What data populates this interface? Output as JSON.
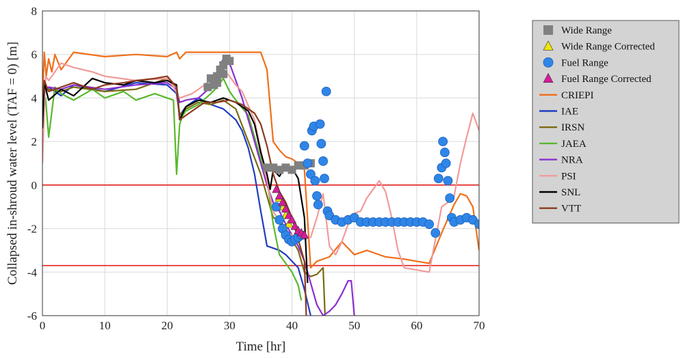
{
  "chart_data": {
    "type": "line",
    "title": "",
    "xlabel": "Time [hr]",
    "ylabel": "Collapsed in-shroud water level (TAF = 0) [m]",
    "xlim": [
      0,
      70
    ],
    "ylim": [
      -6,
      8
    ],
    "xticks": [
      "0",
      "10",
      "20",
      "30",
      "40",
      "50",
      "60",
      "70"
    ],
    "yticks": [
      "-6",
      "-4",
      "-2",
      "0",
      "2",
      "4",
      "6",
      "8"
    ],
    "grid": true,
    "legend_position": "outside-right",
    "reference_lines": [
      {
        "y": 0,
        "color": "#e0201c"
      },
      {
        "y": -3.7,
        "color": "#e0201c"
      }
    ],
    "series": [
      {
        "name": "Wide Range",
        "kind": "marker",
        "marker": "square",
        "color": "#808080",
        "x": [
          26.5,
          27,
          27.5,
          28,
          28.5,
          29,
          29.5,
          30,
          28,
          29,
          36,
          37,
          38,
          39,
          40,
          41,
          42,
          43
        ],
        "y": [
          4.5,
          4.9,
          4.6,
          5.0,
          5.3,
          5.5,
          5.8,
          5.7,
          4.7,
          5.1,
          0.8,
          0.8,
          0.7,
          0.8,
          0.7,
          0.9,
          0.9,
          1.0
        ]
      },
      {
        "name": "Wide Range Corrected",
        "kind": "marker",
        "marker": "triangle",
        "color": "#f2e600",
        "x": [
          38,
          38.5,
          39,
          39.5
        ],
        "y": [
          -0.6,
          -1.0,
          -1.4,
          -1.8
        ]
      },
      {
        "name": "Fuel Range",
        "kind": "marker",
        "marker": "circle",
        "color": "#2f86e8",
        "x": [
          37.5,
          38,
          38.5,
          39,
          39.5,
          40,
          40.5,
          41,
          41.5,
          42,
          42.5,
          43,
          43.2,
          43.5,
          43.7,
          44,
          44.2,
          44.5,
          44.7,
          45,
          45.2,
          45.5,
          45.7,
          46,
          47,
          48,
          49,
          50,
          51,
          52,
          53,
          54,
          55,
          56,
          57,
          58,
          59,
          60,
          61,
          62,
          63,
          63.5,
          64,
          64.2,
          64.5,
          64.7,
          65,
          65.3,
          65.6,
          66,
          67,
          68,
          69,
          70
        ],
        "y": [
          -1.0,
          -1.6,
          -2.0,
          -2.3,
          -2.5,
          -2.6,
          -2.5,
          -2.4,
          -2.3,
          1.8,
          1.0,
          0.5,
          2.5,
          2.7,
          0.2,
          -0.5,
          -0.9,
          2.8,
          1.9,
          1.1,
          0.3,
          4.3,
          -1.2,
          -1.4,
          -1.6,
          -1.7,
          -1.6,
          -1.5,
          -1.7,
          -1.7,
          -1.7,
          -1.7,
          -1.7,
          -1.7,
          -1.7,
          -1.7,
          -1.7,
          -1.7,
          -1.7,
          -1.8,
          -2.2,
          0.3,
          0.8,
          2.0,
          1.5,
          1.0,
          0.2,
          -0.6,
          -1.5,
          -1.7,
          -1.6,
          -1.5,
          -1.6,
          -1.8
        ]
      },
      {
        "name": "Fuel Range Corrected",
        "kind": "marker",
        "marker": "triangle",
        "color": "#d81b9b",
        "x": [
          37.5,
          38,
          38.5,
          39,
          39.5,
          40,
          40.5,
          41,
          41.5,
          42
        ],
        "y": [
          -0.2,
          -0.5,
          -0.8,
          -1.1,
          -1.4,
          -1.6,
          -1.9,
          -2.1,
          -2.2,
          -2.3
        ]
      },
      {
        "name": "CRIEPI",
        "kind": "line",
        "color": "#ef6f1a",
        "x": [
          0,
          0.3,
          0.6,
          1,
          1.5,
          2,
          3,
          5,
          10,
          15,
          20,
          21.5,
          22,
          23,
          25,
          27,
          30,
          35,
          36,
          37,
          38,
          39,
          40,
          41,
          42,
          43,
          44,
          46,
          48,
          50,
          52,
          55,
          58,
          60,
          62,
          64,
          66,
          67,
          68,
          69,
          70
        ],
        "y": [
          4,
          6.1,
          5.0,
          5.8,
          5.2,
          6.0,
          5.3,
          6.1,
          5.9,
          6.0,
          5.9,
          6.1,
          5.8,
          6.1,
          6.1,
          6.1,
          6.1,
          6.1,
          5.3,
          2.0,
          1.6,
          1.3,
          1.2,
          1.0,
          0.7,
          -3.8,
          -3.5,
          -3.3,
          -2.6,
          -3.2,
          -3.0,
          -3.3,
          -3.4,
          -3.5,
          -3.6,
          -2.2,
          -0.9,
          -0.4,
          -0.5,
          -1.0,
          -3.0
        ]
      },
      {
        "name": "IAE",
        "kind": "line",
        "color": "#1f3cc2",
        "x": [
          0,
          1,
          3,
          5,
          10,
          15,
          20,
          21.5,
          22,
          23,
          25,
          27,
          29,
          31,
          32,
          33,
          34,
          35,
          35.5,
          36,
          37,
          38,
          39,
          40,
          41,
          42,
          43
        ],
        "y": [
          4.2,
          4.5,
          4.1,
          4.6,
          4.3,
          4.7,
          4.6,
          4.2,
          3.2,
          3.6,
          4.0,
          3.7,
          3.5,
          3.0,
          2.5,
          1.7,
          0.5,
          -1.2,
          -2.0,
          -2.8,
          -2.9,
          -3.0,
          -3.2,
          -3.5,
          -3.8,
          -4.8,
          -6.0
        ]
      },
      {
        "name": "IRSN",
        "kind": "line",
        "color": "#7a6a10",
        "x": [
          0,
          1,
          3,
          5,
          10,
          15,
          20,
          21.5,
          22,
          23,
          25,
          27,
          29,
          31,
          33,
          35,
          36,
          37,
          38,
          39,
          40,
          41,
          42,
          43,
          44,
          45,
          45.3
        ],
        "y": [
          4.2,
          4.4,
          4.3,
          4.5,
          4.3,
          4.4,
          4.9,
          4.5,
          3.2,
          3.5,
          3.8,
          3.7,
          3.9,
          3.5,
          2.0,
          0.5,
          -0.5,
          -1.5,
          -1.6,
          -2.0,
          -2.5,
          -3.0,
          -4.0,
          -4.2,
          -4.1,
          -3.8,
          -6.0
        ]
      },
      {
        "name": "JAEA",
        "kind": "line",
        "color": "#58b82c",
        "x": [
          0,
          0.5,
          1,
          2,
          3,
          5,
          8,
          10,
          13,
          15,
          18,
          20,
          21,
          21.5,
          22,
          22.5,
          23,
          25,
          27,
          28,
          29,
          30,
          31,
          33,
          35,
          36,
          37,
          38,
          39,
          40,
          41,
          41.5
        ],
        "y": [
          4.1,
          4.0,
          2.2,
          4.5,
          4.2,
          3.9,
          4.4,
          4.0,
          4.3,
          3.9,
          4.2,
          4.0,
          3.9,
          0.5,
          2.8,
          3.2,
          3.4,
          3.7,
          4.2,
          4.5,
          4.9,
          4.3,
          3.9,
          3.2,
          1.2,
          0.3,
          -1.8,
          -3.2,
          -3.6,
          -4.0,
          -4.6,
          -5.3
        ]
      },
      {
        "name": "NRA",
        "kind": "line",
        "color": "#8b2fd0",
        "x": [
          0,
          1,
          3,
          5,
          10,
          15,
          20,
          21.5,
          22,
          23,
          25,
          27,
          28,
          29,
          30,
          32,
          34,
          36,
          37,
          38,
          39,
          40,
          41,
          42,
          43,
          44,
          45,
          46,
          47,
          48,
          49,
          49.5,
          50
        ],
        "y": [
          4.3,
          4.5,
          4.4,
          4.6,
          4.4,
          4.6,
          4.7,
          4.4,
          3.8,
          3.9,
          4.0,
          4.5,
          5.2,
          5.8,
          5.6,
          4.0,
          2.0,
          0.0,
          -0.8,
          -1.2,
          -1.8,
          -2.3,
          -2.8,
          -3.5,
          -4.5,
          -5.5,
          -6.0,
          -5.8,
          -5.5,
          -5.0,
          -4.4,
          -4.4,
          -6.0
        ]
      },
      {
        "name": "PSI",
        "kind": "line",
        "color": "#f29a9a",
        "x": [
          0,
          0.5,
          1,
          2,
          3,
          5,
          8,
          10,
          15,
          20,
          21,
          22,
          24,
          26,
          28,
          29,
          30,
          31,
          32,
          34,
          36,
          37,
          38,
          39,
          40,
          41,
          42,
          43,
          44,
          45,
          46,
          47,
          48,
          49,
          50,
          51,
          52,
          53,
          54,
          55,
          56,
          57,
          58,
          60,
          62,
          64,
          65,
          66,
          67,
          68,
          69,
          70
        ],
        "y": [
          1.0,
          5.0,
          4.8,
          5.2,
          5.6,
          5.4,
          5.2,
          5.0,
          4.8,
          4.9,
          4.5,
          4.0,
          4.2,
          4.6,
          5.1,
          5.3,
          5.0,
          4.6,
          4.3,
          3.0,
          0.2,
          -1.2,
          -1.7,
          -2.1,
          -2.3,
          -2.4,
          -2.5,
          -2.4,
          -1.5,
          -0.4,
          -2.8,
          -3.2,
          -2.6,
          -1.8,
          -1.3,
          -1.2,
          -0.6,
          -0.2,
          0.2,
          -0.3,
          -1.5,
          -3.0,
          -3.8,
          -3.9,
          -4.0,
          -1.0,
          -0.8,
          -0.5,
          1.0,
          2.2,
          3.3,
          2.5
        ]
      },
      {
        "name": "SNL",
        "kind": "line",
        "color": "#000000",
        "x": [
          0,
          0.3,
          1,
          3,
          5,
          8,
          10,
          13,
          15,
          18,
          20,
          21.5,
          22,
          23,
          25,
          27,
          29,
          31,
          33,
          34,
          35,
          36,
          36.5,
          37,
          38,
          39,
          40,
          41,
          42,
          42.5
        ],
        "y": [
          2.6,
          4.7,
          3.9,
          4.4,
          4.1,
          4.9,
          4.7,
          4.6,
          4.8,
          4.7,
          4.8,
          4.6,
          3.0,
          3.6,
          3.9,
          3.8,
          4.0,
          3.8,
          3.4,
          2.8,
          1.5,
          0.5,
          -0.2,
          0.7,
          0.4,
          0.9,
          0.8,
          0.3,
          -1.5,
          -4.5
        ]
      },
      {
        "name": "VTT",
        "kind": "line",
        "color": "#8b3a1e",
        "x": [
          0,
          0.3,
          1,
          3,
          5,
          8,
          10,
          13,
          15,
          18,
          20,
          21.5,
          22,
          24,
          26,
          28,
          30,
          32,
          34,
          35,
          36,
          37,
          38,
          39,
          40,
          41,
          42,
          42.3
        ],
        "y": [
          4.0,
          4.8,
          4.3,
          4.5,
          4.7,
          4.4,
          4.6,
          4.7,
          4.8,
          4.9,
          5.0,
          4.5,
          3.0,
          3.4,
          3.8,
          3.8,
          3.9,
          3.7,
          3.3,
          2.8,
          1.8,
          0.5,
          -0.3,
          -0.8,
          -1.5,
          -2.5,
          -3.5,
          -6.0
        ]
      }
    ]
  }
}
